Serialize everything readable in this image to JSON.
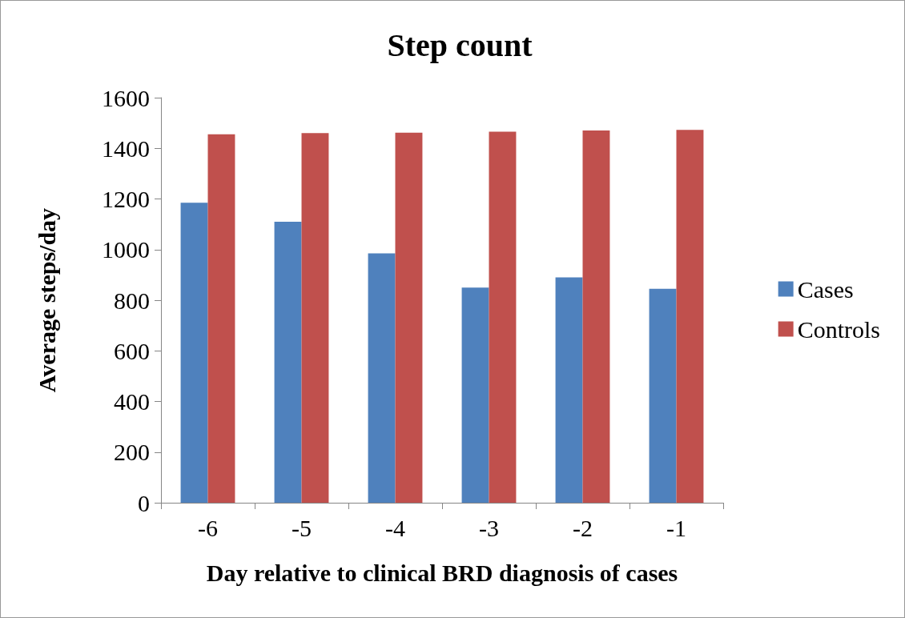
{
  "chart_data": {
    "type": "bar",
    "title": "Step count",
    "xlabel": "Day relative to clinical BRD diagnosis of cases",
    "ylabel": "Average steps/day",
    "categories": [
      "-6",
      "-5",
      "-4",
      "-3",
      "-2",
      "-1"
    ],
    "series": [
      {
        "name": "Cases",
        "color": "#4f81bd",
        "values": [
          1185,
          1110,
          985,
          850,
          890,
          845
        ]
      },
      {
        "name": "Controls",
        "color": "#c0504d",
        "values": [
          1455,
          1460,
          1462,
          1466,
          1470,
          1473
        ]
      }
    ],
    "ylim": [
      0,
      1600
    ],
    "yticks": [
      0,
      200,
      400,
      600,
      800,
      1000,
      1200,
      1400,
      1600
    ],
    "grid": false,
    "legend": "right"
  }
}
